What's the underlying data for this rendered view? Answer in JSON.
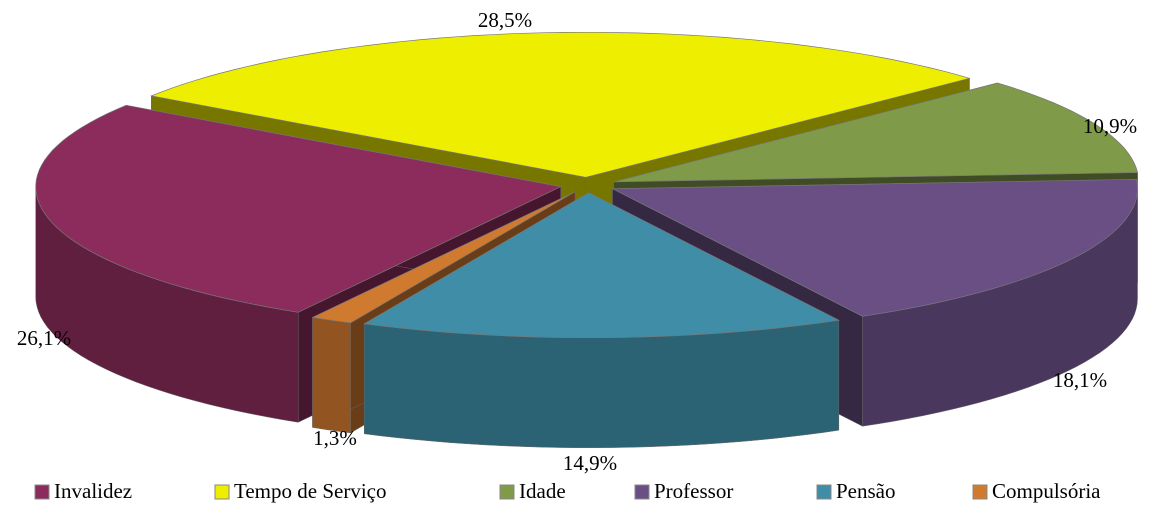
{
  "chart_data": {
    "type": "pie3d",
    "categories": [
      "Invalidez",
      "Tempo de Serviço",
      "Idade",
      "Professor",
      "Pensão",
      "Compulsória"
    ],
    "values": [
      26.1,
      28.5,
      10.9,
      18.1,
      14.9,
      1.3
    ],
    "value_labels": [
      "26,1%",
      "28,5%",
      "10,9%",
      "18,1%",
      "14,9%",
      "1,3%"
    ],
    "colors": [
      "#8b2c5c",
      "#eeee00",
      "#7f9a48",
      "#6a4f85",
      "#3f8da6",
      "#d07a30"
    ],
    "legend": "bottom"
  }
}
